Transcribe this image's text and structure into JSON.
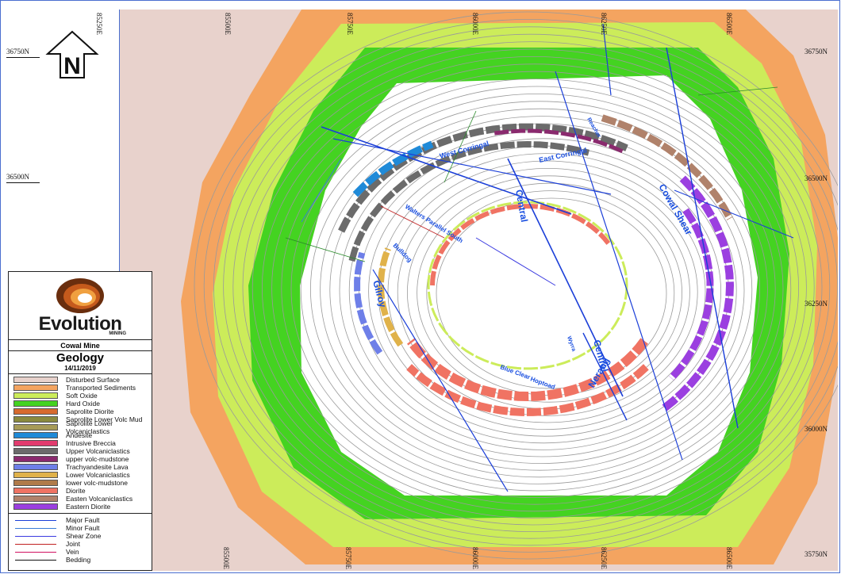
{
  "grid": {
    "eastings": [
      "85250E",
      "85500E",
      "85750E",
      "86000E",
      "86250E",
      "86500E"
    ],
    "northings_left": [
      "36750N",
      "36500N"
    ],
    "northings_right": [
      "36750N",
      "36500N",
      "36250N",
      "36000N",
      "35750N"
    ]
  },
  "north_arrow": {
    "label": "N",
    "icon": "north-arrow-icon"
  },
  "legend": {
    "logo_word": "Evolution",
    "logo_sub": "MINING",
    "mine_name": "Cowal Mine",
    "map_title": "Geology",
    "date": "14/11/2019",
    "units": [
      {
        "label": "Disturbed Surface",
        "color": "#e8d2cc"
      },
      {
        "label": "Transported Sediments",
        "color": "#f4a460"
      },
      {
        "label": "Soft Oxide",
        "color": "#ccec5a"
      },
      {
        "label": "Hard Oxide",
        "color": "#44d321"
      },
      {
        "label": "Saprolite Diorite",
        "color": "#d76a2e"
      },
      {
        "label": "Saprolite Lower Volc Mud",
        "color": "#8a8a3e"
      },
      {
        "label": "Saprolite Lower Volcaniclastics",
        "color": "#a79b57"
      },
      {
        "label": "Andesite",
        "color": "#1f8ad8"
      },
      {
        "label": "Intrusive Breccia",
        "color": "#e23c6e"
      },
      {
        "label": "Upper Volcaniclastics",
        "color": "#6b6b6b"
      },
      {
        "label": "upper volc-mudstone",
        "color": "#8a2a6e"
      },
      {
        "label": "Trachyandesite Lava",
        "color": "#6e7fe8"
      },
      {
        "label": "Lower Volcaniclastics",
        "color": "#e0b24a"
      },
      {
        "label": "lower volc-mudstone",
        "color": "#b07b4a"
      },
      {
        "label": "Diorite",
        "color": "#f07363"
      },
      {
        "label": "Easten Volcaniclastics",
        "color": "#b0826b"
      },
      {
        "label": "Eastern Diorite",
        "color": "#9b3fe0"
      }
    ],
    "line_types": [
      {
        "label": "Major Fault",
        "color": "#1a3ed8"
      },
      {
        "label": "Minor Fault",
        "color": "#3a7cd8"
      },
      {
        "label": "Shear Zone",
        "color": "#3a3ae0"
      },
      {
        "label": "Joint",
        "color": "#c02020"
      },
      {
        "label": "Vein",
        "color": "#d01060"
      },
      {
        "label": "Bedding",
        "color": "#111111"
      }
    ]
  },
  "fault_labels": [
    "West Corringal",
    "East Corringal",
    "Central",
    "Cowal Shear",
    "Walters Parallel South",
    "Bulldog",
    "Gilroy",
    "Central",
    "Nerang",
    "Blue Clear",
    "Hoptoad",
    "Wyrra",
    "Reacher"
  ]
}
